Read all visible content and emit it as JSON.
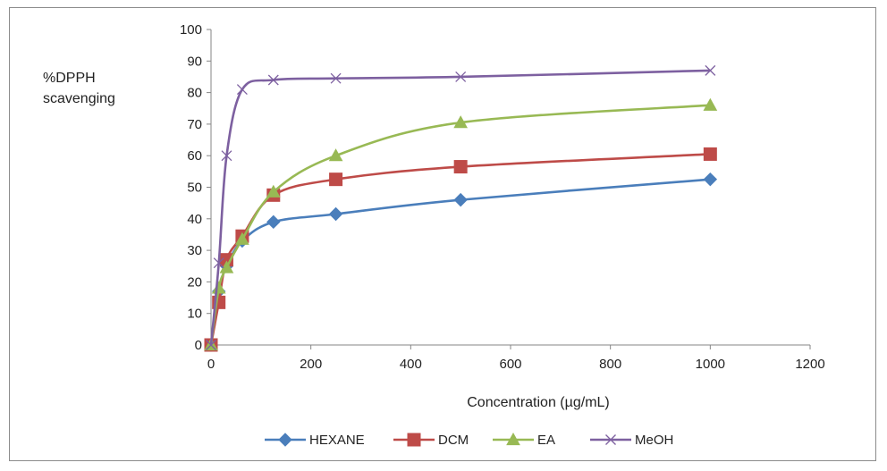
{
  "chart_data": {
    "type": "line",
    "title": "",
    "ylabel_line1": "%DPPH",
    "ylabel_line2": "scavenging",
    "xlabel": "Concentration (µg/mL)",
    "xlim": [
      0,
      1200
    ],
    "ylim": [
      0,
      100
    ],
    "xticks": [
      "0",
      "200",
      "400",
      "600",
      "800",
      "1000",
      "1200"
    ],
    "yticks": [
      "0",
      "10",
      "20",
      "30",
      "40",
      "50",
      "60",
      "70",
      "80",
      "90",
      "100"
    ],
    "grid": false,
    "legend_position": "bottom",
    "smooth": true,
    "series": [
      {
        "name": "HEXANE",
        "color": "#4a7ebb",
        "marker": "diamond",
        "x": [
          0,
          15.6,
          31.25,
          62.5,
          125,
          250,
          500,
          1000
        ],
        "y": [
          0,
          17,
          25,
          33,
          39,
          41.5,
          46,
          52.5
        ]
      },
      {
        "name": "DCM",
        "color": "#be4b48",
        "marker": "square",
        "x": [
          0,
          15.6,
          31.25,
          62.5,
          125,
          250,
          500,
          1000
        ],
        "y": [
          0,
          13.5,
          27,
          34.5,
          47.5,
          52.5,
          56.5,
          60.5
        ]
      },
      {
        "name": "EA",
        "color": "#98b954",
        "marker": "triangle",
        "x": [
          0,
          15.6,
          31.25,
          62.5,
          125,
          250,
          500,
          1000
        ],
        "y": [
          0,
          18,
          24.5,
          33.5,
          48.5,
          60,
          70.5,
          76
        ]
      },
      {
        "name": "MeOH",
        "color": "#7d60a0",
        "marker": "x",
        "x": [
          0,
          15.6,
          31.25,
          62.5,
          125,
          250,
          500,
          1000
        ],
        "y": [
          0,
          26,
          60,
          81,
          84,
          84.5,
          85,
          87
        ]
      }
    ]
  }
}
